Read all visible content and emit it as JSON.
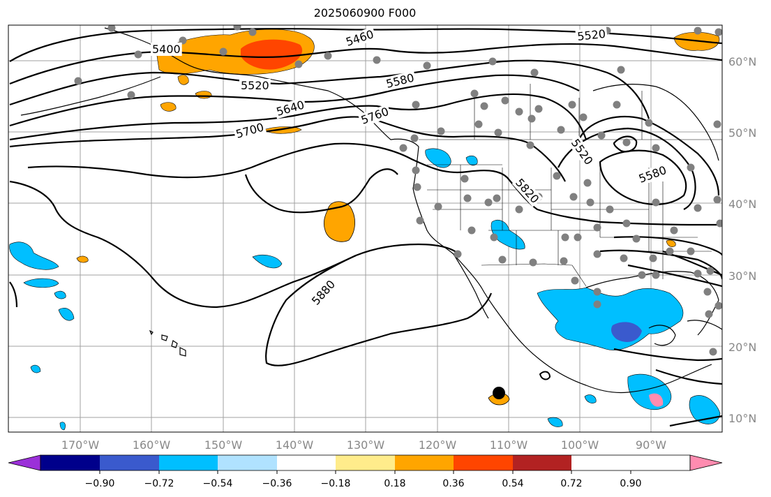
{
  "title": "2025060900 F000",
  "map": {
    "longitude_labels": [
      "170°W",
      "160°W",
      "150°W",
      "140°W",
      "130°W",
      "120°W",
      "110°W",
      "100°W",
      "90°W"
    ],
    "latitude_labels": [
      "60°N",
      "50°N",
      "40°N",
      "30°N",
      "20°N",
      "10°N"
    ],
    "contour_labels": [
      "5400",
      "5460",
      "5520",
      "5520",
      "5580",
      "5640",
      "5700",
      "5760",
      "5520",
      "5580",
      "5820",
      "5880"
    ],
    "contour_color": "#000000",
    "station_marker_color": "#808080",
    "coastline_color": "#000000"
  },
  "colorbar": {
    "tick_labels": [
      "−0.90",
      "−0.72",
      "−0.54",
      "−0.36",
      "−0.18",
      "0.18",
      "0.36",
      "0.54",
      "0.72",
      "0.90"
    ],
    "colors": [
      "#9b30d9",
      "#00008b",
      "#3a5acd",
      "#00bfff",
      "#b0e2ff",
      "#ffffff",
      "#ffec8b",
      "#ffa500",
      "#ff4500",
      "#b22222",
      "#ff8cb0"
    ],
    "extend": "both"
  }
}
